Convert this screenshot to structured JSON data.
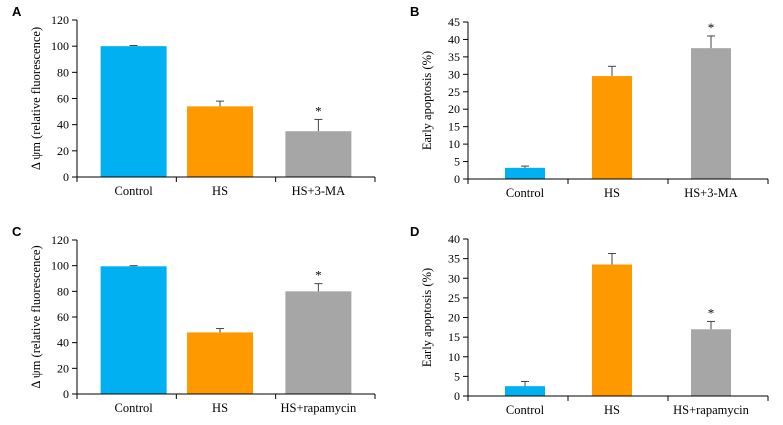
{
  "chart_data": [
    {
      "panel": "A",
      "type": "bar",
      "ylabel": "Δ ψm (relative fluorescence)",
      "xlabel": "",
      "ylim": [
        0,
        120
      ],
      "yticks": [
        0,
        20,
        40,
        60,
        80,
        100,
        120
      ],
      "categories": [
        "Control",
        "HS",
        "HS+3-MA"
      ],
      "values": [
        100,
        54,
        35
      ],
      "errors": [
        0.5,
        4,
        9
      ],
      "significance": [
        "",
        "",
        "*"
      ],
      "colors": [
        "#00b0f0",
        "#ff9900",
        "#a6a6a6"
      ]
    },
    {
      "panel": "B",
      "type": "bar",
      "ylabel": "Early apoptosis (%)",
      "xlabel": "",
      "ylim": [
        0,
        45
      ],
      "yticks": [
        0,
        5,
        10,
        15,
        20,
        25,
        30,
        35,
        40,
        45
      ],
      "categories": [
        "Control",
        "HS",
        "HS+3-MA"
      ],
      "values": [
        3.2,
        29.5,
        37.5
      ],
      "errors": [
        0.5,
        2.8,
        3.5
      ],
      "significance": [
        "",
        "",
        "*"
      ],
      "colors": [
        "#00b0f0",
        "#ff9900",
        "#a6a6a6"
      ]
    },
    {
      "panel": "C",
      "type": "bar",
      "ylabel": "Δ ψm (relative fluorescence)",
      "xlabel": "",
      "ylim": [
        0,
        120
      ],
      "yticks": [
        0,
        20,
        40,
        60,
        80,
        100,
        120
      ],
      "categories": [
        "Control",
        "HS",
        "HS+rapamycin"
      ],
      "values": [
        99.5,
        48,
        80
      ],
      "errors": [
        0.5,
        3,
        6
      ],
      "significance": [
        "",
        "",
        "*"
      ],
      "colors": [
        "#00b0f0",
        "#ff9900",
        "#a6a6a6"
      ]
    },
    {
      "panel": "D",
      "type": "bar",
      "ylabel": "Early apoptosis (%)",
      "xlabel": "",
      "ylim": [
        0,
        40
      ],
      "yticks": [
        0,
        5,
        10,
        15,
        20,
        25,
        30,
        35,
        40
      ],
      "categories": [
        "Control",
        "HS",
        "HS+rapamycin"
      ],
      "values": [
        2.5,
        33.5,
        17
      ],
      "errors": [
        1.2,
        2.8,
        2
      ],
      "significance": [
        "",
        "",
        "*"
      ],
      "colors": [
        "#00b0f0",
        "#ff9900",
        "#a6a6a6"
      ]
    }
  ]
}
